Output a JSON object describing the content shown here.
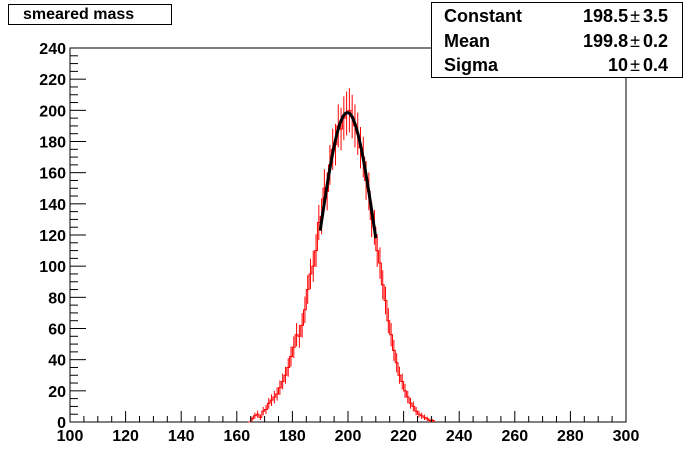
{
  "title": "smeared mass",
  "stats": [
    {
      "name": "Constant",
      "value": "198.5",
      "error": "3.5"
    },
    {
      "name": "Mean",
      "value": "199.8",
      "error": "0.2"
    },
    {
      "name": "Sigma",
      "value": "10",
      "error": "0.4"
    }
  ],
  "pm_symbol": "±",
  "colors": {
    "histogram": "#ff0000",
    "fit": "#000000",
    "axis": "#000000"
  },
  "chart_data": {
    "type": "line",
    "title": "smeared mass",
    "xlabel": "",
    "ylabel": "",
    "xlim": [
      100,
      300
    ],
    "ylim": [
      0,
      240
    ],
    "x_ticks": [
      100,
      120,
      140,
      160,
      180,
      200,
      220,
      240,
      260,
      280,
      300
    ],
    "y_ticks": [
      0,
      20,
      40,
      60,
      80,
      100,
      120,
      140,
      160,
      180,
      200,
      220,
      240
    ],
    "grid": false,
    "legend": "top-right",
    "series": [
      {
        "kind": "histogram-steps",
        "x": [
          165,
          166,
          167,
          168,
          169,
          170,
          171,
          172,
          173,
          174,
          175,
          176,
          177,
          178,
          179,
          180,
          181,
          182,
          183,
          184,
          185,
          186,
          187,
          188,
          189,
          190,
          191,
          192,
          193,
          194,
          195,
          196,
          197,
          198,
          199,
          200,
          201,
          202,
          203,
          204,
          205,
          206,
          207,
          208,
          209,
          210,
          211,
          212,
          213,
          214,
          215,
          216,
          217,
          218,
          219,
          220,
          221,
          222,
          223,
          224,
          225,
          226,
          227,
          228,
          229,
          230
        ],
        "values": [
          2,
          4,
          5,
          3,
          7,
          8,
          12,
          14,
          16,
          18,
          22,
          26,
          30,
          35,
          42,
          48,
          56,
          55,
          62,
          72,
          85,
          95,
          100,
          110,
          128,
          132,
          150,
          148,
          165,
          175,
          178,
          190,
          188,
          195,
          198,
          200,
          196,
          190,
          185,
          176,
          170,
          155,
          148,
          130,
          125,
          110,
          102,
          88,
          78,
          65,
          56,
          46,
          38,
          30,
          26,
          20,
          16,
          12,
          10,
          7,
          5,
          4,
          3,
          2,
          1,
          1
        ]
      },
      {
        "kind": "gaussian-fit",
        "constant": 198.5,
        "mean": 199.8,
        "sigma": 10,
        "range": [
          190,
          210
        ]
      }
    ]
  }
}
